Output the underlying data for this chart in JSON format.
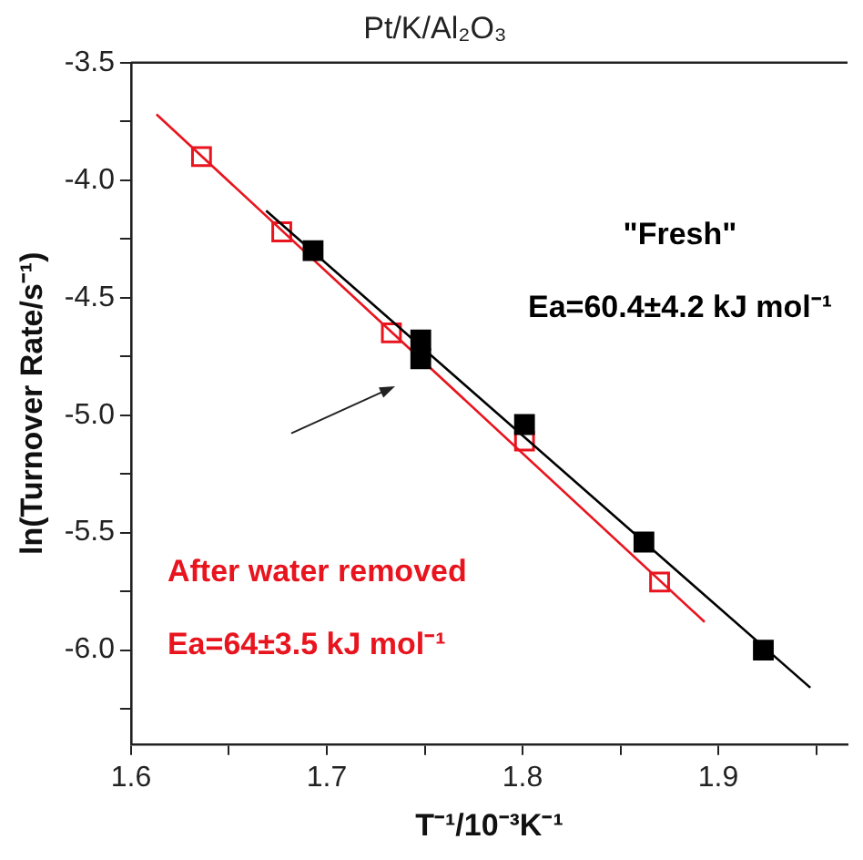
{
  "chart_data": {
    "type": "scatter",
    "title": "Pt/K/Al₂O₃",
    "xlabel": "T⁻¹/10⁻³K⁻¹",
    "ylabel": "ln(Turnover Rate/s⁻¹)",
    "xlim": [
      1.6,
      1.966
    ],
    "ylim": [
      -6.4,
      -3.5
    ],
    "xticks": [
      1.6,
      {
        "value": 1.65,
        "label": null
      },
      1.7,
      {
        "value": 1.75,
        "label": null
      },
      1.8,
      {
        "value": 1.85,
        "label": null
      },
      1.9,
      {
        "value": 1.95,
        "label": null
      }
    ],
    "yticks": [
      {
        "value": -6.25,
        "label": null
      },
      {
        "value": -6,
        "label": "-6.0"
      },
      {
        "value": -5.75,
        "label": null
      },
      -5.5,
      {
        "value": -5.25,
        "label": null
      },
      {
        "value": -5,
        "label": "-5.0"
      },
      {
        "value": -4.75,
        "label": null
      },
      -4.5,
      {
        "value": -4.25,
        "label": null
      },
      {
        "value": -4,
        "label": "-4.0"
      },
      {
        "value": -3.75,
        "label": null
      },
      -3.5
    ],
    "grid": false,
    "legend": false,
    "marker": "square",
    "series": [
      {
        "name": "\"Fresh\"",
        "color": "#000000",
        "x": [
          1.693,
          1.748,
          1.748,
          1.801,
          1.862,
          1.923
        ],
        "values": [
          -4.3,
          -4.68,
          -4.76,
          -5.04,
          -5.54,
          -6.0
        ]
      },
      {
        "type": "line",
        "color": "#000000",
        "marker": "none",
        "x": [
          1.669,
          1.947
        ],
        "values": [
          -4.13,
          -6.16
        ]
      },
      {
        "name": "After water removed",
        "color": "#e8141e",
        "x": [
          1.636,
          1.677,
          1.733,
          1.801,
          1.87
        ],
        "values": [
          -3.9,
          -4.22,
          -4.65,
          -5.11,
          -5.71
        ]
      },
      {
        "type": "line",
        "color": "#e8141e",
        "marker": "none",
        "x": [
          1.613,
          1.893
        ],
        "values": [
          -3.72,
          -5.88
        ]
      }
    ],
    "annotations": [
      "Ea=60.4±4.2 kJ mol⁻¹",
      "Ea=64±3.5 kJ mol⁻¹"
    ]
  }
}
